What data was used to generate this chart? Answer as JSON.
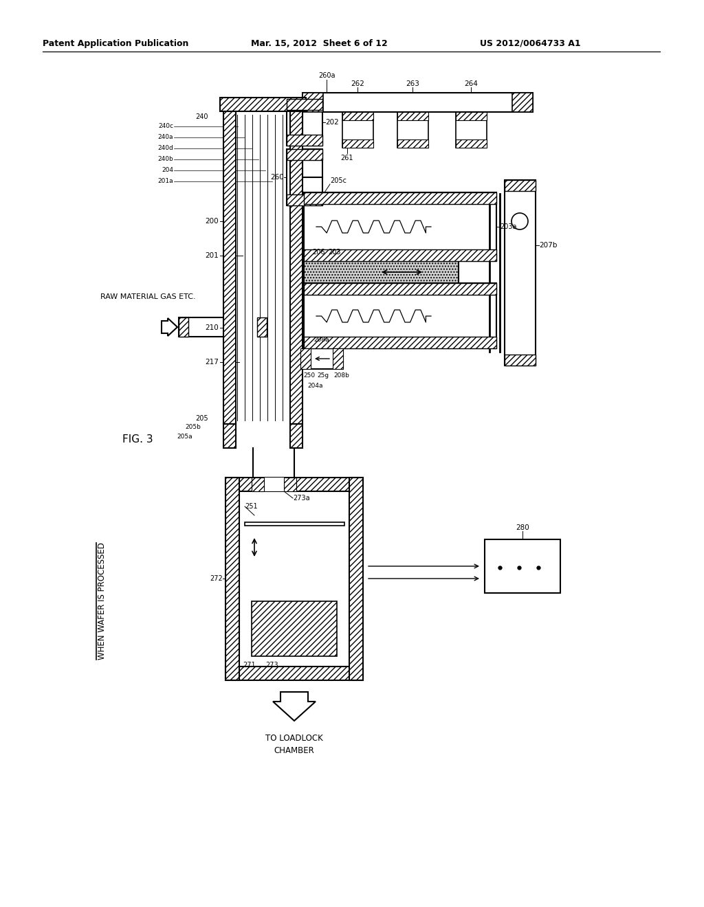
{
  "title_left": "Patent Application Publication",
  "title_mid": "Mar. 15, 2012  Sheet 6 of 12",
  "title_right": "US 2012/0064733 A1",
  "fig_label": "FIG. 3",
  "background": "#ffffff"
}
